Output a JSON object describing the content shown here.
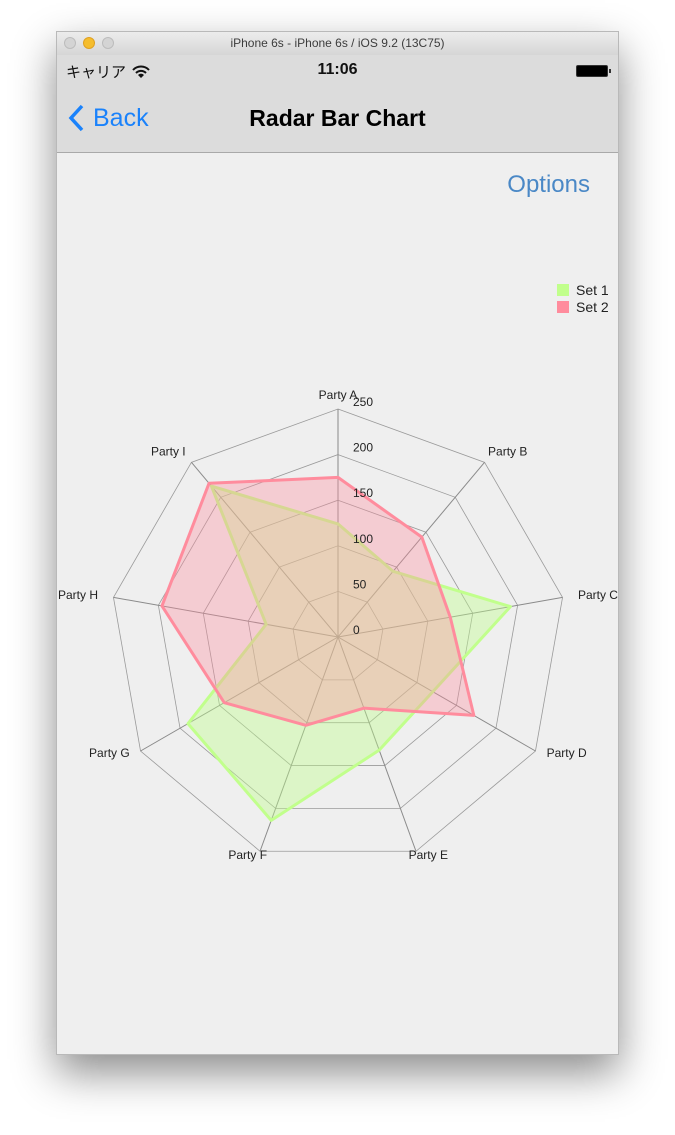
{
  "window": {
    "title": "iPhone 6s - iPhone 6s / iOS 9.2 (13C75)"
  },
  "status_bar": {
    "carrier": "キャリア",
    "time": "11:06",
    "wifi_icon": "wifi-icon",
    "battery_icon": "battery-icon"
  },
  "nav": {
    "back_label": "Back",
    "title": "Radar Bar Chart"
  },
  "options_label": "Options",
  "colors": {
    "set1": "#c1ff8c",
    "set2": "#ff8c9d",
    "grid": "#9a9a9a"
  },
  "chart_data": {
    "type": "radar",
    "categories": [
      "Party A",
      "Party B",
      "Party C",
      "Party D",
      "Party E",
      "Party F",
      "Party G",
      "Party H",
      "Party I"
    ],
    "series": [
      {
        "name": "Set 1",
        "values": [
          124,
          94,
          192,
          120,
          132,
          214,
          190,
          80,
          216
        ]
      },
      {
        "name": "Set 2",
        "values": [
          175,
          143,
          125,
          172,
          83,
          103,
          144,
          196,
          220
        ]
      }
    ],
    "ylim": [
      0,
      250
    ],
    "ticks": [
      "0",
      "50",
      "100",
      "150",
      "200",
      "250"
    ],
    "grid": true,
    "legend": "top-right"
  }
}
